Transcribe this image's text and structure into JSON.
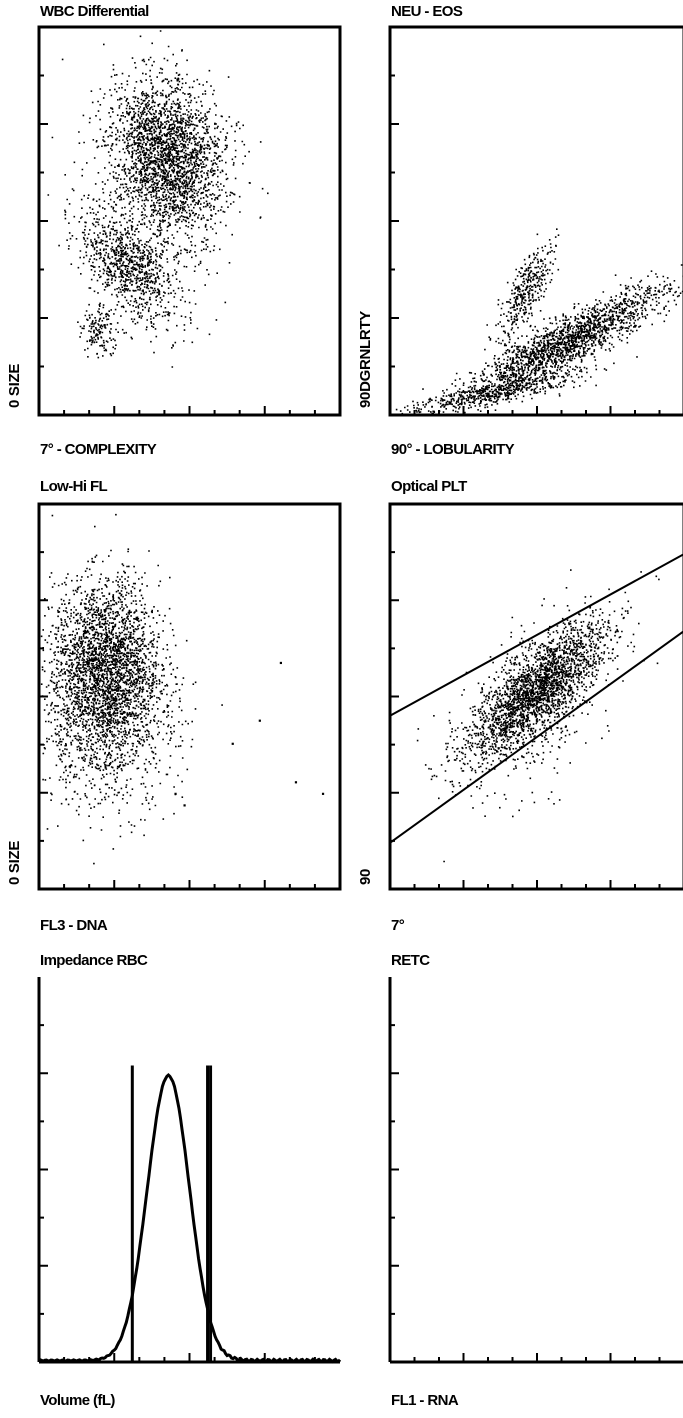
{
  "chart_data": [
    {
      "type": "scatter",
      "title": "WBC Differential",
      "xlabel": "7° - COMPLEXITY",
      "ylabel": "0 SIZE",
      "clusters": [
        {
          "cx": 0.42,
          "cy": 0.66,
          "sx": 0.09,
          "sy": 0.11,
          "n": 2600,
          "rot": 0.5
        },
        {
          "cx": 0.3,
          "cy": 0.38,
          "sx": 0.05,
          "sy": 0.1,
          "n": 900,
          "rot": 0.9
        },
        {
          "cx": 0.2,
          "cy": 0.22,
          "sx": 0.03,
          "sy": 0.03,
          "n": 150,
          "rot": 0.3
        }
      ]
    },
    {
      "type": "scatter",
      "title": "NEU - EOS",
      "xlabel": "90° - LOBULARITY",
      "ylabel": "90DGRNLRTY",
      "clusters": [
        {
          "cx": 0.6,
          "cy": 0.19,
          "sx": 0.18,
          "sy": 0.03,
          "n": 1800,
          "rot": 0.38
        },
        {
          "cx": 0.35,
          "cy": 0.06,
          "sx": 0.15,
          "sy": 0.015,
          "n": 500,
          "rot": 0.15
        },
        {
          "cx": 0.46,
          "cy": 0.32,
          "sx": 0.07,
          "sy": 0.025,
          "n": 350,
          "rot": 0.95
        }
      ]
    },
    {
      "type": "scatter",
      "title": "Low-Hi FL",
      "xlabel": "FL3 - DNA",
      "ylabel": "0 SIZE",
      "clusters": [
        {
          "cx": 0.22,
          "cy": 0.58,
          "sx": 0.09,
          "sy": 0.11,
          "n": 2600,
          "rot": 0.0
        },
        {
          "cx": 0.22,
          "cy": 0.4,
          "sx": 0.12,
          "sy": 0.1,
          "n": 700,
          "rot": 0.0
        }
      ],
      "outliers": [
        [
          0.8,
          0.59
        ],
        [
          0.73,
          0.44
        ],
        [
          0.64,
          0.38
        ],
        [
          0.85,
          0.28
        ],
        [
          0.94,
          0.25
        ],
        [
          0.48,
          0.22
        ],
        [
          0.45,
          0.25
        ]
      ]
    },
    {
      "type": "scatter",
      "title": "Optical PLT",
      "xlabel": "7°",
      "ylabel": "90",
      "clusters": [
        {
          "cx": 0.5,
          "cy": 0.52,
          "sx": 0.14,
          "sy": 0.045,
          "n": 2200,
          "rot": 0.6
        },
        {
          "cx": 0.48,
          "cy": 0.46,
          "sx": 0.14,
          "sy": 0.1,
          "n": 400,
          "rot": 0.6
        }
      ],
      "gates": [
        {
          "x0": 0.0,
          "y0": 0.45,
          "x1": 1.0,
          "y1": 0.87
        },
        {
          "x0": 0.0,
          "y0": 0.12,
          "x1": 1.0,
          "y1": 0.67
        }
      ]
    },
    {
      "type": "line",
      "title": "Impedance RBC",
      "xlabel": "Volume (fL)",
      "ylabel": "",
      "peak_x": 0.43,
      "peak_height": 0.74,
      "peak_width": 0.07,
      "gate_lines": [
        0.31,
        0.56,
        0.57
      ]
    },
    {
      "type": "scatter",
      "title": "RETC",
      "xlabel": "FL1 - RNA",
      "ylabel": "",
      "clusters": []
    }
  ]
}
